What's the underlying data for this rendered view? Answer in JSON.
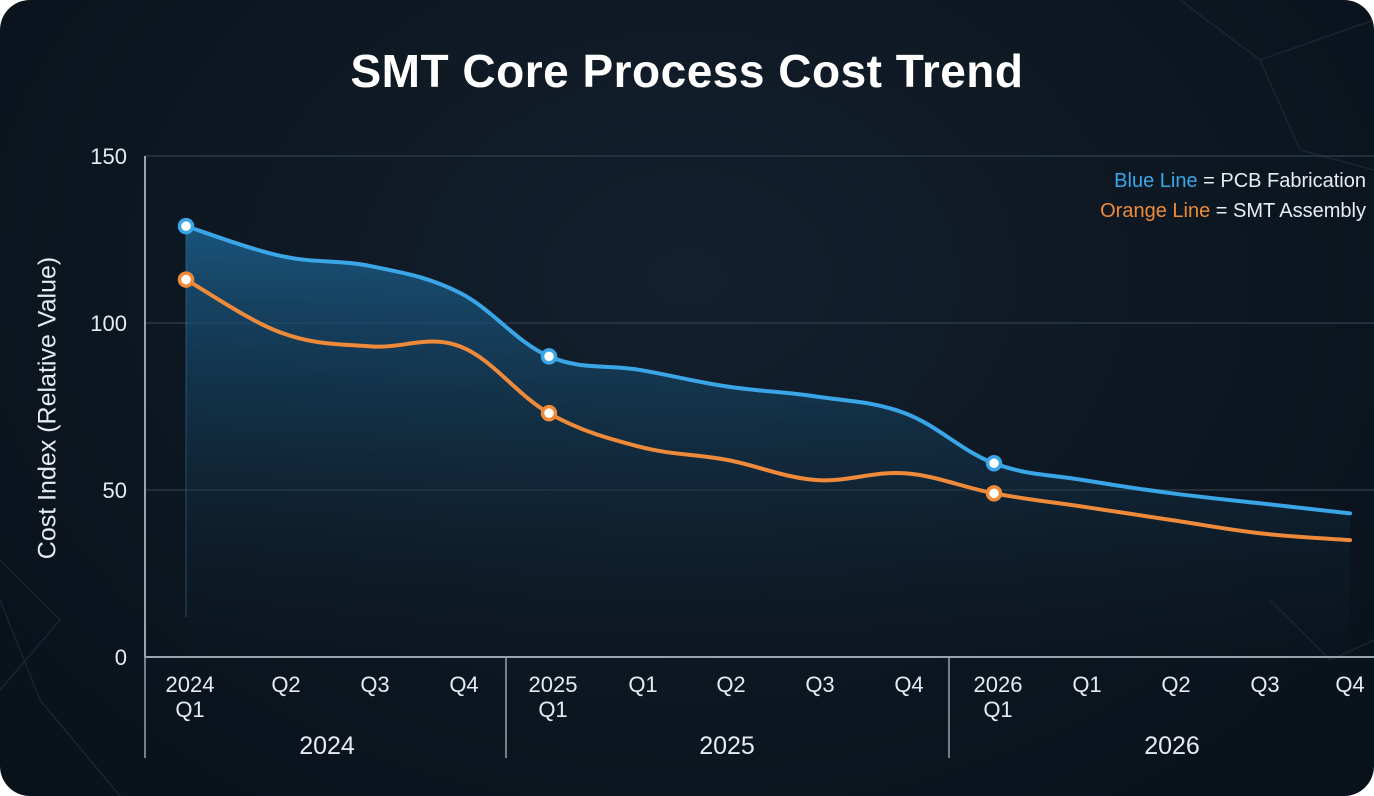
{
  "chart_data": {
    "type": "line",
    "title": "SMT Core Process Cost Trend",
    "ylabel": "Cost Index (Relative Value)",
    "ylim": [
      0,
      150
    ],
    "yticks": [
      "150",
      "100",
      "50",
      "0"
    ],
    "ytick_values": [
      150,
      100,
      50,
      0
    ],
    "x_tick_labels": [
      [
        "2024",
        "Q1"
      ],
      [
        "Q2"
      ],
      [
        "Q3"
      ],
      [
        "Q4"
      ],
      [
        "2025",
        "Q1"
      ],
      [
        "Q1"
      ],
      [
        "Q2"
      ],
      [
        "Q3"
      ],
      [
        "Q4"
      ],
      [
        "2026",
        "Q1"
      ],
      [
        "Q1"
      ],
      [
        "Q2"
      ],
      [
        "Q3"
      ],
      [
        "Q4"
      ]
    ],
    "year_groups": [
      "2024",
      "2025",
      "2026"
    ],
    "grid": true,
    "legend_position": "top-right",
    "series": [
      {
        "name": "PCB Fabrication",
        "color": "#3aa6e8",
        "values": [
          129,
          120,
          117,
          109,
          90,
          86,
          81,
          78,
          73,
          58,
          53,
          49,
          46,
          43
        ]
      },
      {
        "name": "SMT Assembly",
        "color": "#ee8a3a",
        "values": [
          113,
          97,
          93,
          93,
          73,
          63,
          59,
          53,
          55,
          49,
          45,
          41,
          37,
          35
        ]
      }
    ],
    "marked_points": [
      0,
      4,
      9
    ]
  },
  "legend": {
    "blue_label": "Blue Line",
    "blue_eq": " = PCB Fabrication",
    "orange_label": "Orange Line",
    "orange_eq": " = SMT Assembly"
  },
  "colors": {
    "background": "#0d1721",
    "axis": "#9aa3ab",
    "grid": "#2a3946",
    "text": "#e6ebef"
  }
}
